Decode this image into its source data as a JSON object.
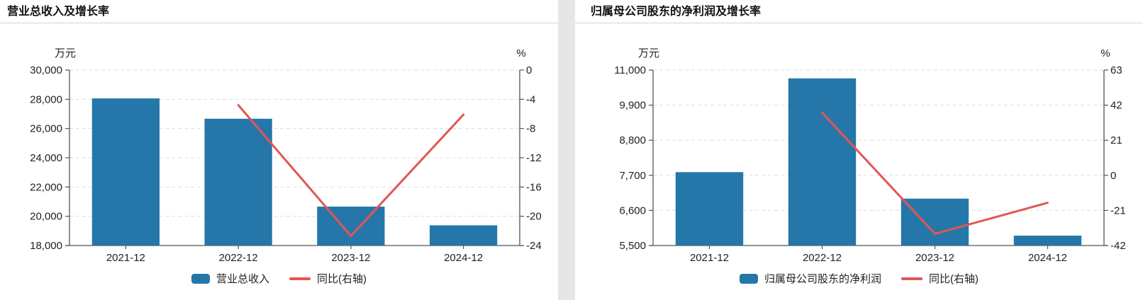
{
  "colors": {
    "bar": "#2577A9",
    "line": "#E15654",
    "grid": "#DCDCDC",
    "axis": "#555555",
    "text": "#222222",
    "title": "#111111",
    "panel_gap": "#E6E6E6"
  },
  "chart_data": [
    {
      "type": "bar+line",
      "title": "营业总收入及增长率",
      "unit_left": "万元",
      "unit_right": "%",
      "categories": [
        "2021-12",
        "2022-12",
        "2023-12",
        "2024-12"
      ],
      "bar_series": {
        "name": "营业总收入",
        "axis": "left",
        "values": [
          28060,
          26670,
          20660,
          19380
        ]
      },
      "line_series": {
        "name": "同比(右轴)",
        "axis": "right",
        "values": [
          null,
          -4.8,
          -22.7,
          -6.1
        ]
      },
      "left_axis": {
        "min": 18000,
        "max": 30000,
        "step": 2000,
        "tick_labels": [
          "30,000",
          "28,000",
          "26,000",
          "24,000",
          "22,000",
          "20,000",
          "18,000"
        ]
      },
      "right_axis": {
        "min": -24,
        "max": 0,
        "step": 4,
        "tick_labels": [
          "0",
          "-4",
          "-8",
          "-12",
          "-16",
          "-20",
          "-24"
        ]
      },
      "legend_position": "bottom",
      "grid": "dashed-horizontal"
    },
    {
      "type": "bar+line",
      "title": "归属母公司股东的净利润及增长率",
      "unit_left": "万元",
      "unit_right": "%",
      "categories": [
        "2021-12",
        "2022-12",
        "2023-12",
        "2024-12"
      ],
      "bar_series": {
        "name": "归属母公司股东的净利润",
        "axis": "left",
        "values": [
          7800,
          10740,
          6970,
          5810
        ]
      },
      "line_series": {
        "name": "同比(右轴)",
        "axis": "right",
        "values": [
          null,
          37.5,
          -35.0,
          -16.4
        ]
      },
      "left_axis": {
        "min": 5500,
        "max": 11000,
        "step": 1100,
        "tick_labels": [
          "11,000",
          "9,900",
          "8,800",
          "7,700",
          "6,600",
          "5,500"
        ]
      },
      "right_axis": {
        "min": -42,
        "max": 63,
        "step": 21,
        "tick_labels": [
          "63",
          "42",
          "21",
          "0",
          "-21",
          "-42"
        ]
      },
      "legend_position": "bottom",
      "grid": "dashed-horizontal"
    }
  ]
}
